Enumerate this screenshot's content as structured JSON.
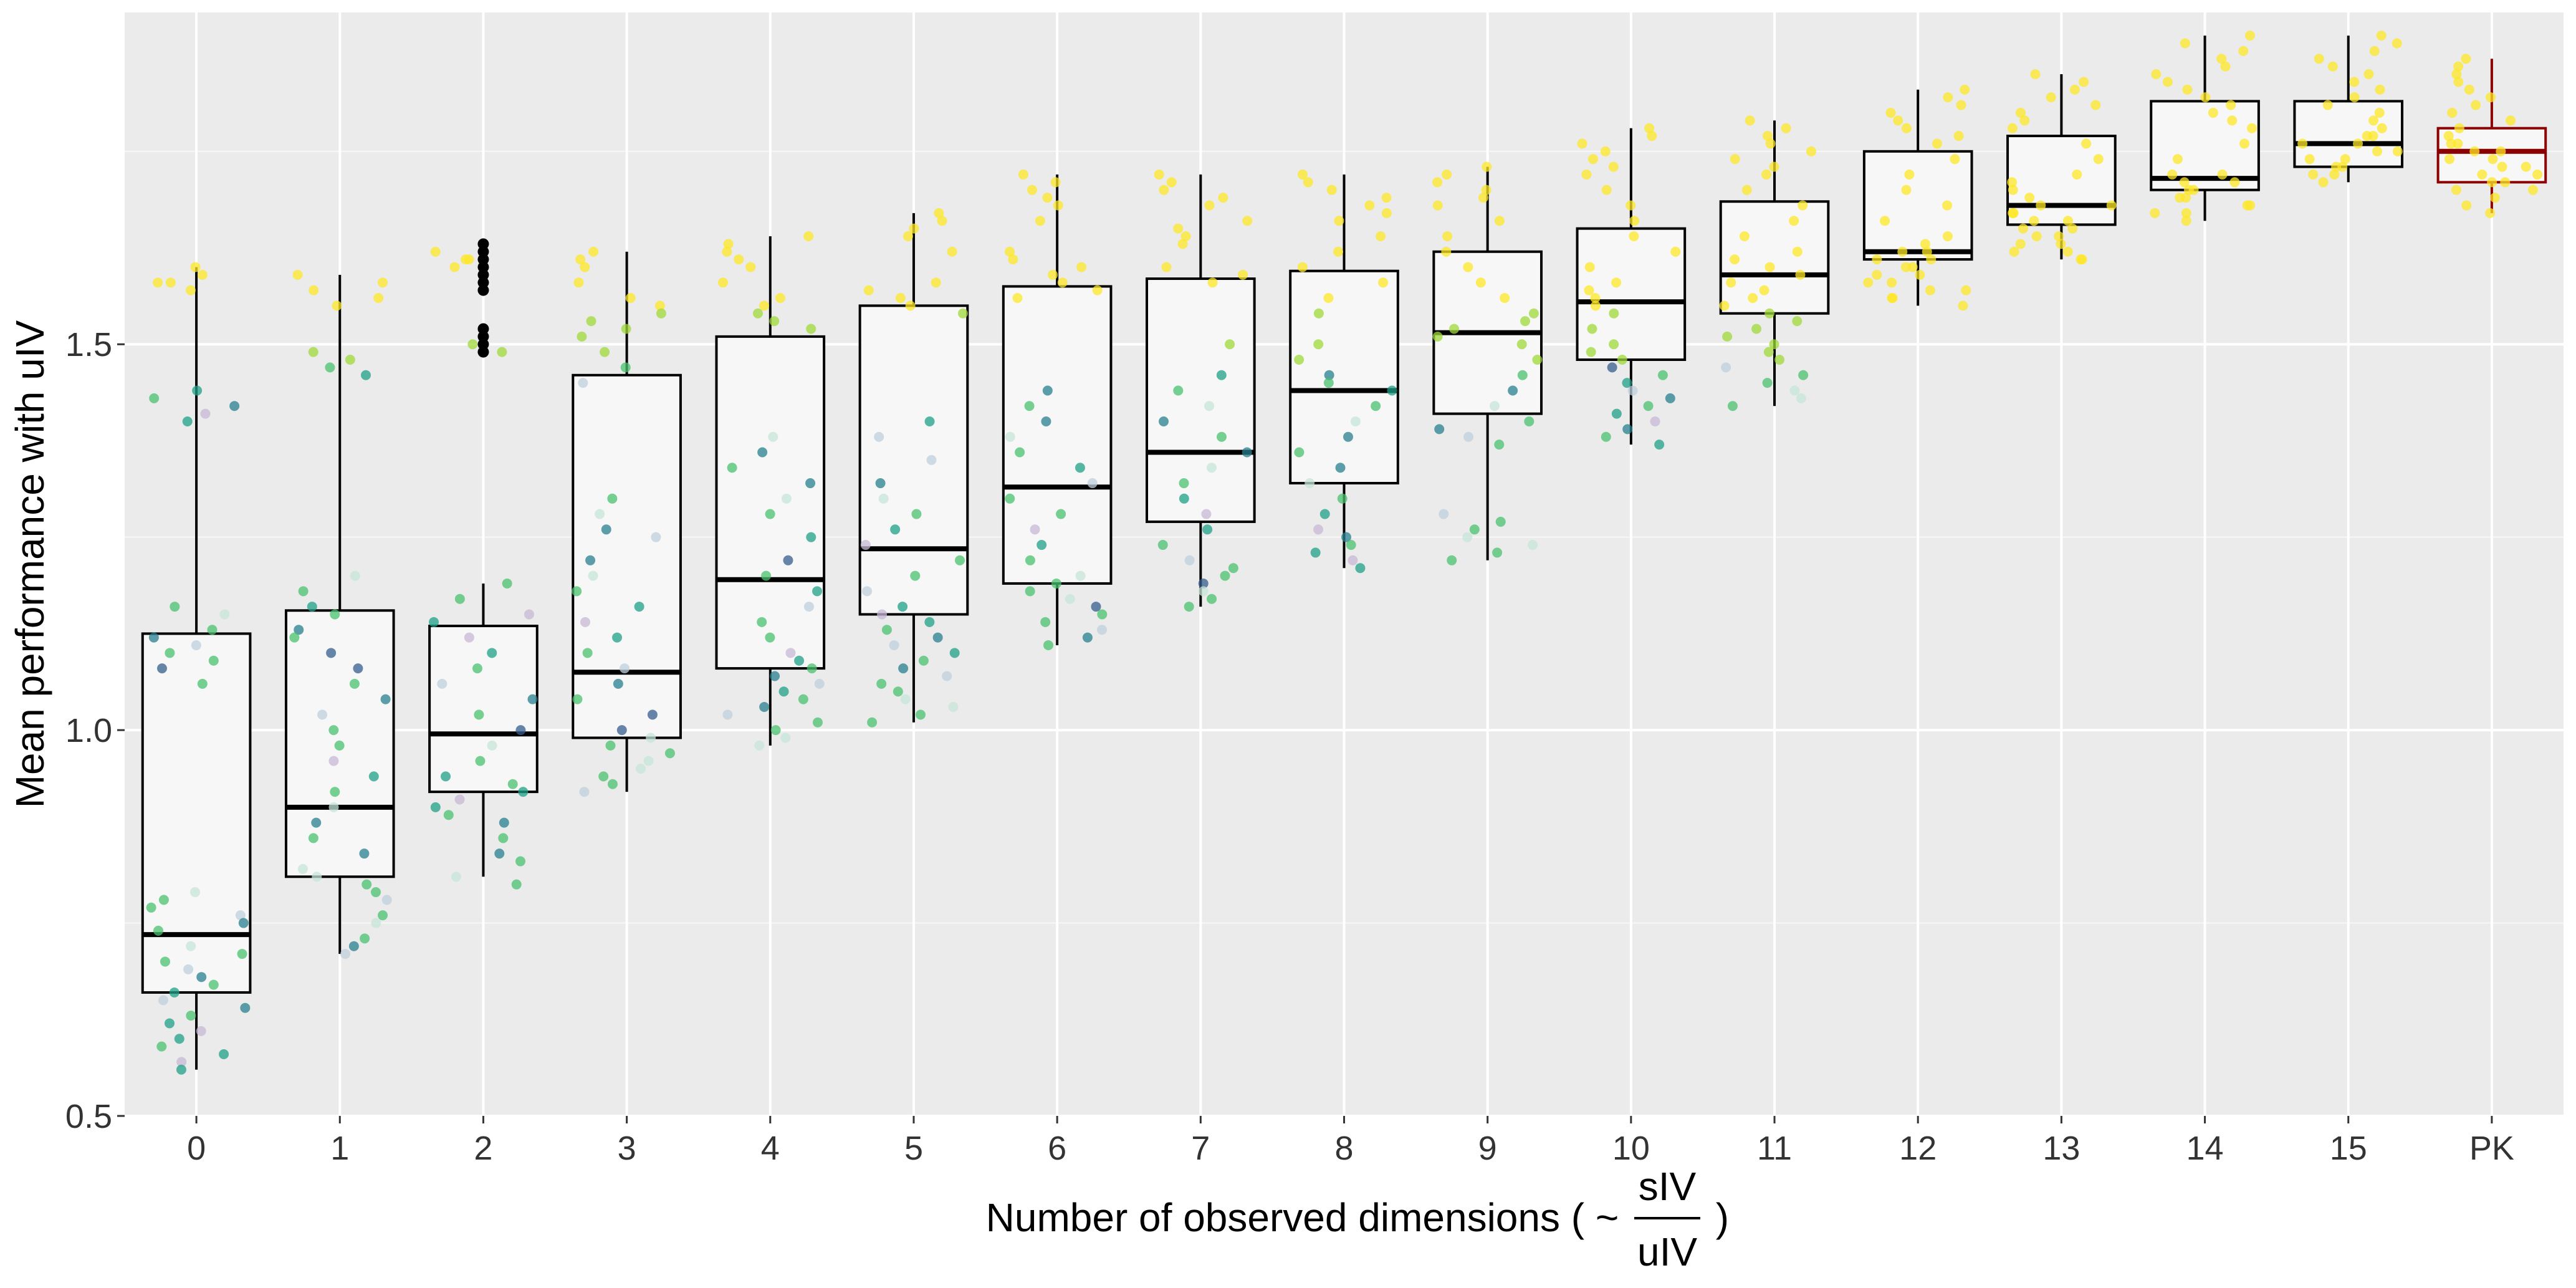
{
  "chart_data": {
    "type": "boxplot",
    "title": "",
    "xlabel_prefix": "Number of observed dimensions ( ~ ",
    "xlabel_suffix": " )",
    "xlabel_fraction_numerator": "sIV",
    "xlabel_fraction_denominator": "uIV",
    "ylabel": "Mean performance with uIV",
    "ylim": [
      0.5,
      1.93
    ],
    "yticks": [
      0.5,
      1.0,
      1.5
    ],
    "ytick_labels": [
      "0.5",
      "1.0",
      "1.5"
    ],
    "grid": true,
    "highlight_color": "#8B0000",
    "categories": [
      "0",
      "1",
      "2",
      "3",
      "4",
      "5",
      "6",
      "7",
      "8",
      "9",
      "10",
      "11",
      "12",
      "13",
      "14",
      "15",
      "PK"
    ],
    "boxes": [
      {
        "category": "0",
        "whisker_low": 0.56,
        "q1": 0.66,
        "median": 0.735,
        "q3": 1.125,
        "whisker_high": 1.6
      },
      {
        "category": "1",
        "whisker_low": 0.71,
        "q1": 0.81,
        "median": 0.9,
        "q3": 1.155,
        "whisker_high": 1.59
      },
      {
        "category": "2",
        "whisker_low": 0.81,
        "q1": 0.92,
        "median": 0.995,
        "q3": 1.135,
        "whisker_high": 1.19,
        "outliers": [
          1.49,
          1.5,
          1.51,
          1.52,
          1.57,
          1.58,
          1.59,
          1.6,
          1.61,
          1.62,
          1.63
        ]
      },
      {
        "category": "3",
        "whisker_low": 0.92,
        "q1": 0.99,
        "median": 1.075,
        "q3": 1.46,
        "whisker_high": 1.62
      },
      {
        "category": "4",
        "whisker_low": 0.98,
        "q1": 1.08,
        "median": 1.195,
        "q3": 1.51,
        "whisker_high": 1.64
      },
      {
        "category": "5",
        "whisker_low": 1.01,
        "q1": 1.15,
        "median": 1.235,
        "q3": 1.55,
        "whisker_high": 1.67
      },
      {
        "category": "6",
        "whisker_low": 1.11,
        "q1": 1.19,
        "median": 1.315,
        "q3": 1.575,
        "whisker_high": 1.72
      },
      {
        "category": "7",
        "whisker_low": 1.16,
        "q1": 1.27,
        "median": 1.36,
        "q3": 1.585,
        "whisker_high": 1.72
      },
      {
        "category": "8",
        "whisker_low": 1.21,
        "q1": 1.32,
        "median": 1.44,
        "q3": 1.595,
        "whisker_high": 1.72
      },
      {
        "category": "9",
        "whisker_low": 1.22,
        "q1": 1.41,
        "median": 1.515,
        "q3": 1.62,
        "whisker_high": 1.73
      },
      {
        "category": "10",
        "whisker_low": 1.37,
        "q1": 1.48,
        "median": 1.555,
        "q3": 1.65,
        "whisker_high": 1.78
      },
      {
        "category": "11",
        "whisker_low": 1.42,
        "q1": 1.54,
        "median": 1.59,
        "q3": 1.685,
        "whisker_high": 1.79
      },
      {
        "category": "12",
        "whisker_low": 1.55,
        "q1": 1.61,
        "median": 1.62,
        "q3": 1.75,
        "whisker_high": 1.83
      },
      {
        "category": "13",
        "whisker_low": 1.61,
        "q1": 1.655,
        "median": 1.68,
        "q3": 1.77,
        "whisker_high": 1.85
      },
      {
        "category": "14",
        "whisker_low": 1.66,
        "q1": 1.7,
        "median": 1.715,
        "q3": 1.815,
        "whisker_high": 1.9
      },
      {
        "category": "15",
        "whisker_low": 1.71,
        "q1": 1.73,
        "median": 1.76,
        "q3": 1.815,
        "whisker_high": 1.9
      },
      {
        "category": "PK",
        "whisker_low": 1.67,
        "q1": 1.71,
        "median": 1.75,
        "q3": 1.78,
        "whisker_high": 1.87,
        "highlight": true
      }
    ],
    "point_groups": [
      {
        "category": "0",
        "points": [
          1.6,
          1.59,
          1.58,
          1.58,
          1.57,
          1.44,
          1.43,
          1.42,
          1.41,
          1.4,
          1.16,
          1.15,
          1.13,
          1.12,
          1.11,
          1.1,
          1.09,
          1.08,
          1.06,
          0.79,
          0.78,
          0.77,
          0.76,
          0.75,
          0.74,
          0.72,
          0.71,
          0.7,
          0.69,
          0.68,
          0.67,
          0.66,
          0.65,
          0.64,
          0.63,
          0.62,
          0.61,
          0.6,
          0.59,
          0.58,
          0.57,
          0.56
        ]
      },
      {
        "category": "1",
        "points": [
          1.59,
          1.58,
          1.57,
          1.56,
          1.55,
          1.49,
          1.48,
          1.47,
          1.46,
          1.2,
          1.18,
          1.16,
          1.15,
          1.13,
          1.12,
          1.1,
          1.08,
          1.06,
          1.04,
          1.02,
          1.0,
          0.98,
          0.96,
          0.94,
          0.92,
          0.9,
          0.88,
          0.86,
          0.84,
          0.82,
          0.81,
          0.8,
          0.79,
          0.78,
          0.76,
          0.75,
          0.73,
          0.72,
          0.71
        ]
      },
      {
        "category": "2",
        "points": [
          1.62,
          1.61,
          1.61,
          1.6,
          1.5,
          1.49,
          1.19,
          1.17,
          1.15,
          1.14,
          1.12,
          1.1,
          1.08,
          1.06,
          1.04,
          1.02,
          1.0,
          0.98,
          0.96,
          0.94,
          0.93,
          0.92,
          0.91,
          0.9,
          0.89,
          0.88,
          0.86,
          0.84,
          0.83,
          0.81,
          0.8
        ]
      },
      {
        "category": "3",
        "points": [
          1.62,
          1.61,
          1.6,
          1.58,
          1.56,
          1.55,
          1.54,
          1.53,
          1.52,
          1.51,
          1.49,
          1.47,
          1.45,
          1.3,
          1.28,
          1.26,
          1.25,
          1.22,
          1.2,
          1.18,
          1.16,
          1.14,
          1.12,
          1.1,
          1.08,
          1.06,
          1.04,
          1.02,
          1.0,
          0.99,
          0.98,
          0.97,
          0.96,
          0.95,
          0.94,
          0.93,
          0.92
        ]
      },
      {
        "category": "4",
        "points": [
          1.64,
          1.63,
          1.62,
          1.61,
          1.6,
          1.58,
          1.56,
          1.55,
          1.54,
          1.53,
          1.52,
          1.38,
          1.36,
          1.34,
          1.32,
          1.3,
          1.28,
          1.25,
          1.22,
          1.2,
          1.18,
          1.16,
          1.14,
          1.12,
          1.1,
          1.09,
          1.08,
          1.07,
          1.06,
          1.05,
          1.04,
          1.03,
          1.02,
          1.01,
          1.0,
          0.99,
          0.98
        ]
      },
      {
        "category": "5",
        "points": [
          1.67,
          1.66,
          1.65,
          1.64,
          1.62,
          1.58,
          1.57,
          1.56,
          1.55,
          1.54,
          1.4,
          1.38,
          1.35,
          1.32,
          1.3,
          1.28,
          1.26,
          1.24,
          1.22,
          1.2,
          1.18,
          1.16,
          1.15,
          1.14,
          1.13,
          1.12,
          1.11,
          1.1,
          1.09,
          1.08,
          1.07,
          1.06,
          1.05,
          1.04,
          1.03,
          1.02,
          1.01
        ]
      },
      {
        "category": "6",
        "points": [
          1.72,
          1.71,
          1.7,
          1.69,
          1.68,
          1.66,
          1.62,
          1.61,
          1.6,
          1.59,
          1.58,
          1.57,
          1.56,
          1.44,
          1.42,
          1.4,
          1.38,
          1.36,
          1.34,
          1.32,
          1.3,
          1.28,
          1.26,
          1.24,
          1.22,
          1.2,
          1.19,
          1.18,
          1.17,
          1.16,
          1.15,
          1.14,
          1.13,
          1.12,
          1.11
        ]
      },
      {
        "category": "7",
        "points": [
          1.72,
          1.71,
          1.7,
          1.69,
          1.68,
          1.66,
          1.65,
          1.64,
          1.63,
          1.6,
          1.59,
          1.58,
          1.5,
          1.46,
          1.44,
          1.42,
          1.4,
          1.38,
          1.36,
          1.34,
          1.32,
          1.3,
          1.28,
          1.26,
          1.24,
          1.22,
          1.21,
          1.2,
          1.19,
          1.18,
          1.17,
          1.16
        ]
      },
      {
        "category": "8",
        "points": [
          1.72,
          1.71,
          1.7,
          1.69,
          1.68,
          1.67,
          1.66,
          1.64,
          1.62,
          1.6,
          1.58,
          1.56,
          1.54,
          1.5,
          1.48,
          1.46,
          1.45,
          1.44,
          1.42,
          1.4,
          1.38,
          1.36,
          1.34,
          1.32,
          1.3,
          1.28,
          1.26,
          1.25,
          1.24,
          1.23,
          1.22,
          1.21
        ]
      },
      {
        "category": "9",
        "points": [
          1.73,
          1.72,
          1.71,
          1.7,
          1.69,
          1.68,
          1.66,
          1.64,
          1.62,
          1.6,
          1.58,
          1.56,
          1.54,
          1.53,
          1.52,
          1.51,
          1.5,
          1.48,
          1.46,
          1.44,
          1.42,
          1.4,
          1.39,
          1.38,
          1.37,
          1.28,
          1.27,
          1.26,
          1.25,
          1.24,
          1.23,
          1.22
        ]
      },
      {
        "category": "10",
        "points": [
          1.78,
          1.77,
          1.76,
          1.75,
          1.74,
          1.73,
          1.72,
          1.7,
          1.68,
          1.66,
          1.64,
          1.62,
          1.6,
          1.58,
          1.57,
          1.56,
          1.55,
          1.54,
          1.52,
          1.5,
          1.49,
          1.48,
          1.47,
          1.46,
          1.45,
          1.44,
          1.43,
          1.42,
          1.41,
          1.4,
          1.39,
          1.38,
          1.37
        ]
      },
      {
        "category": "11",
        "points": [
          1.79,
          1.78,
          1.77,
          1.76,
          1.75,
          1.74,
          1.73,
          1.72,
          1.7,
          1.68,
          1.66,
          1.64,
          1.62,
          1.61,
          1.6,
          1.59,
          1.58,
          1.57,
          1.56,
          1.55,
          1.54,
          1.53,
          1.52,
          1.51,
          1.5,
          1.49,
          1.48,
          1.47,
          1.46,
          1.45,
          1.44,
          1.43,
          1.42
        ]
      },
      {
        "category": "12",
        "points": [
          1.83,
          1.82,
          1.81,
          1.8,
          1.79,
          1.78,
          1.77,
          1.76,
          1.74,
          1.72,
          1.7,
          1.68,
          1.66,
          1.64,
          1.63,
          1.62,
          1.62,
          1.61,
          1.61,
          1.6,
          1.6,
          1.59,
          1.59,
          1.58,
          1.58,
          1.57,
          1.57,
          1.56,
          1.56,
          1.55
        ]
      },
      {
        "category": "13",
        "points": [
          1.85,
          1.84,
          1.83,
          1.82,
          1.81,
          1.8,
          1.79,
          1.78,
          1.76,
          1.74,
          1.72,
          1.71,
          1.7,
          1.69,
          1.68,
          1.68,
          1.67,
          1.67,
          1.66,
          1.66,
          1.65,
          1.65,
          1.64,
          1.64,
          1.63,
          1.63,
          1.62,
          1.62,
          1.61,
          1.61
        ]
      },
      {
        "category": "14",
        "points": [
          1.9,
          1.89,
          1.88,
          1.87,
          1.86,
          1.85,
          1.84,
          1.83,
          1.82,
          1.81,
          1.8,
          1.79,
          1.78,
          1.76,
          1.74,
          1.72,
          1.72,
          1.71,
          1.71,
          1.7,
          1.7,
          1.69,
          1.69,
          1.68,
          1.68,
          1.67,
          1.67,
          1.66
        ]
      },
      {
        "category": "15",
        "points": [
          1.9,
          1.89,
          1.88,
          1.87,
          1.86,
          1.85,
          1.84,
          1.83,
          1.82,
          1.81,
          1.8,
          1.79,
          1.78,
          1.77,
          1.77,
          1.76,
          1.76,
          1.75,
          1.75,
          1.74,
          1.74,
          1.73,
          1.73,
          1.72,
          1.72,
          1.71
        ]
      },
      {
        "category": "PK",
        "points": [
          1.87,
          1.86,
          1.85,
          1.84,
          1.83,
          1.82,
          1.81,
          1.8,
          1.79,
          1.78,
          1.77,
          1.76,
          1.76,
          1.75,
          1.75,
          1.74,
          1.74,
          1.73,
          1.73,
          1.72,
          1.72,
          1.71,
          1.71,
          1.7,
          1.7,
          1.69,
          1.68,
          1.67
        ]
      }
    ]
  }
}
